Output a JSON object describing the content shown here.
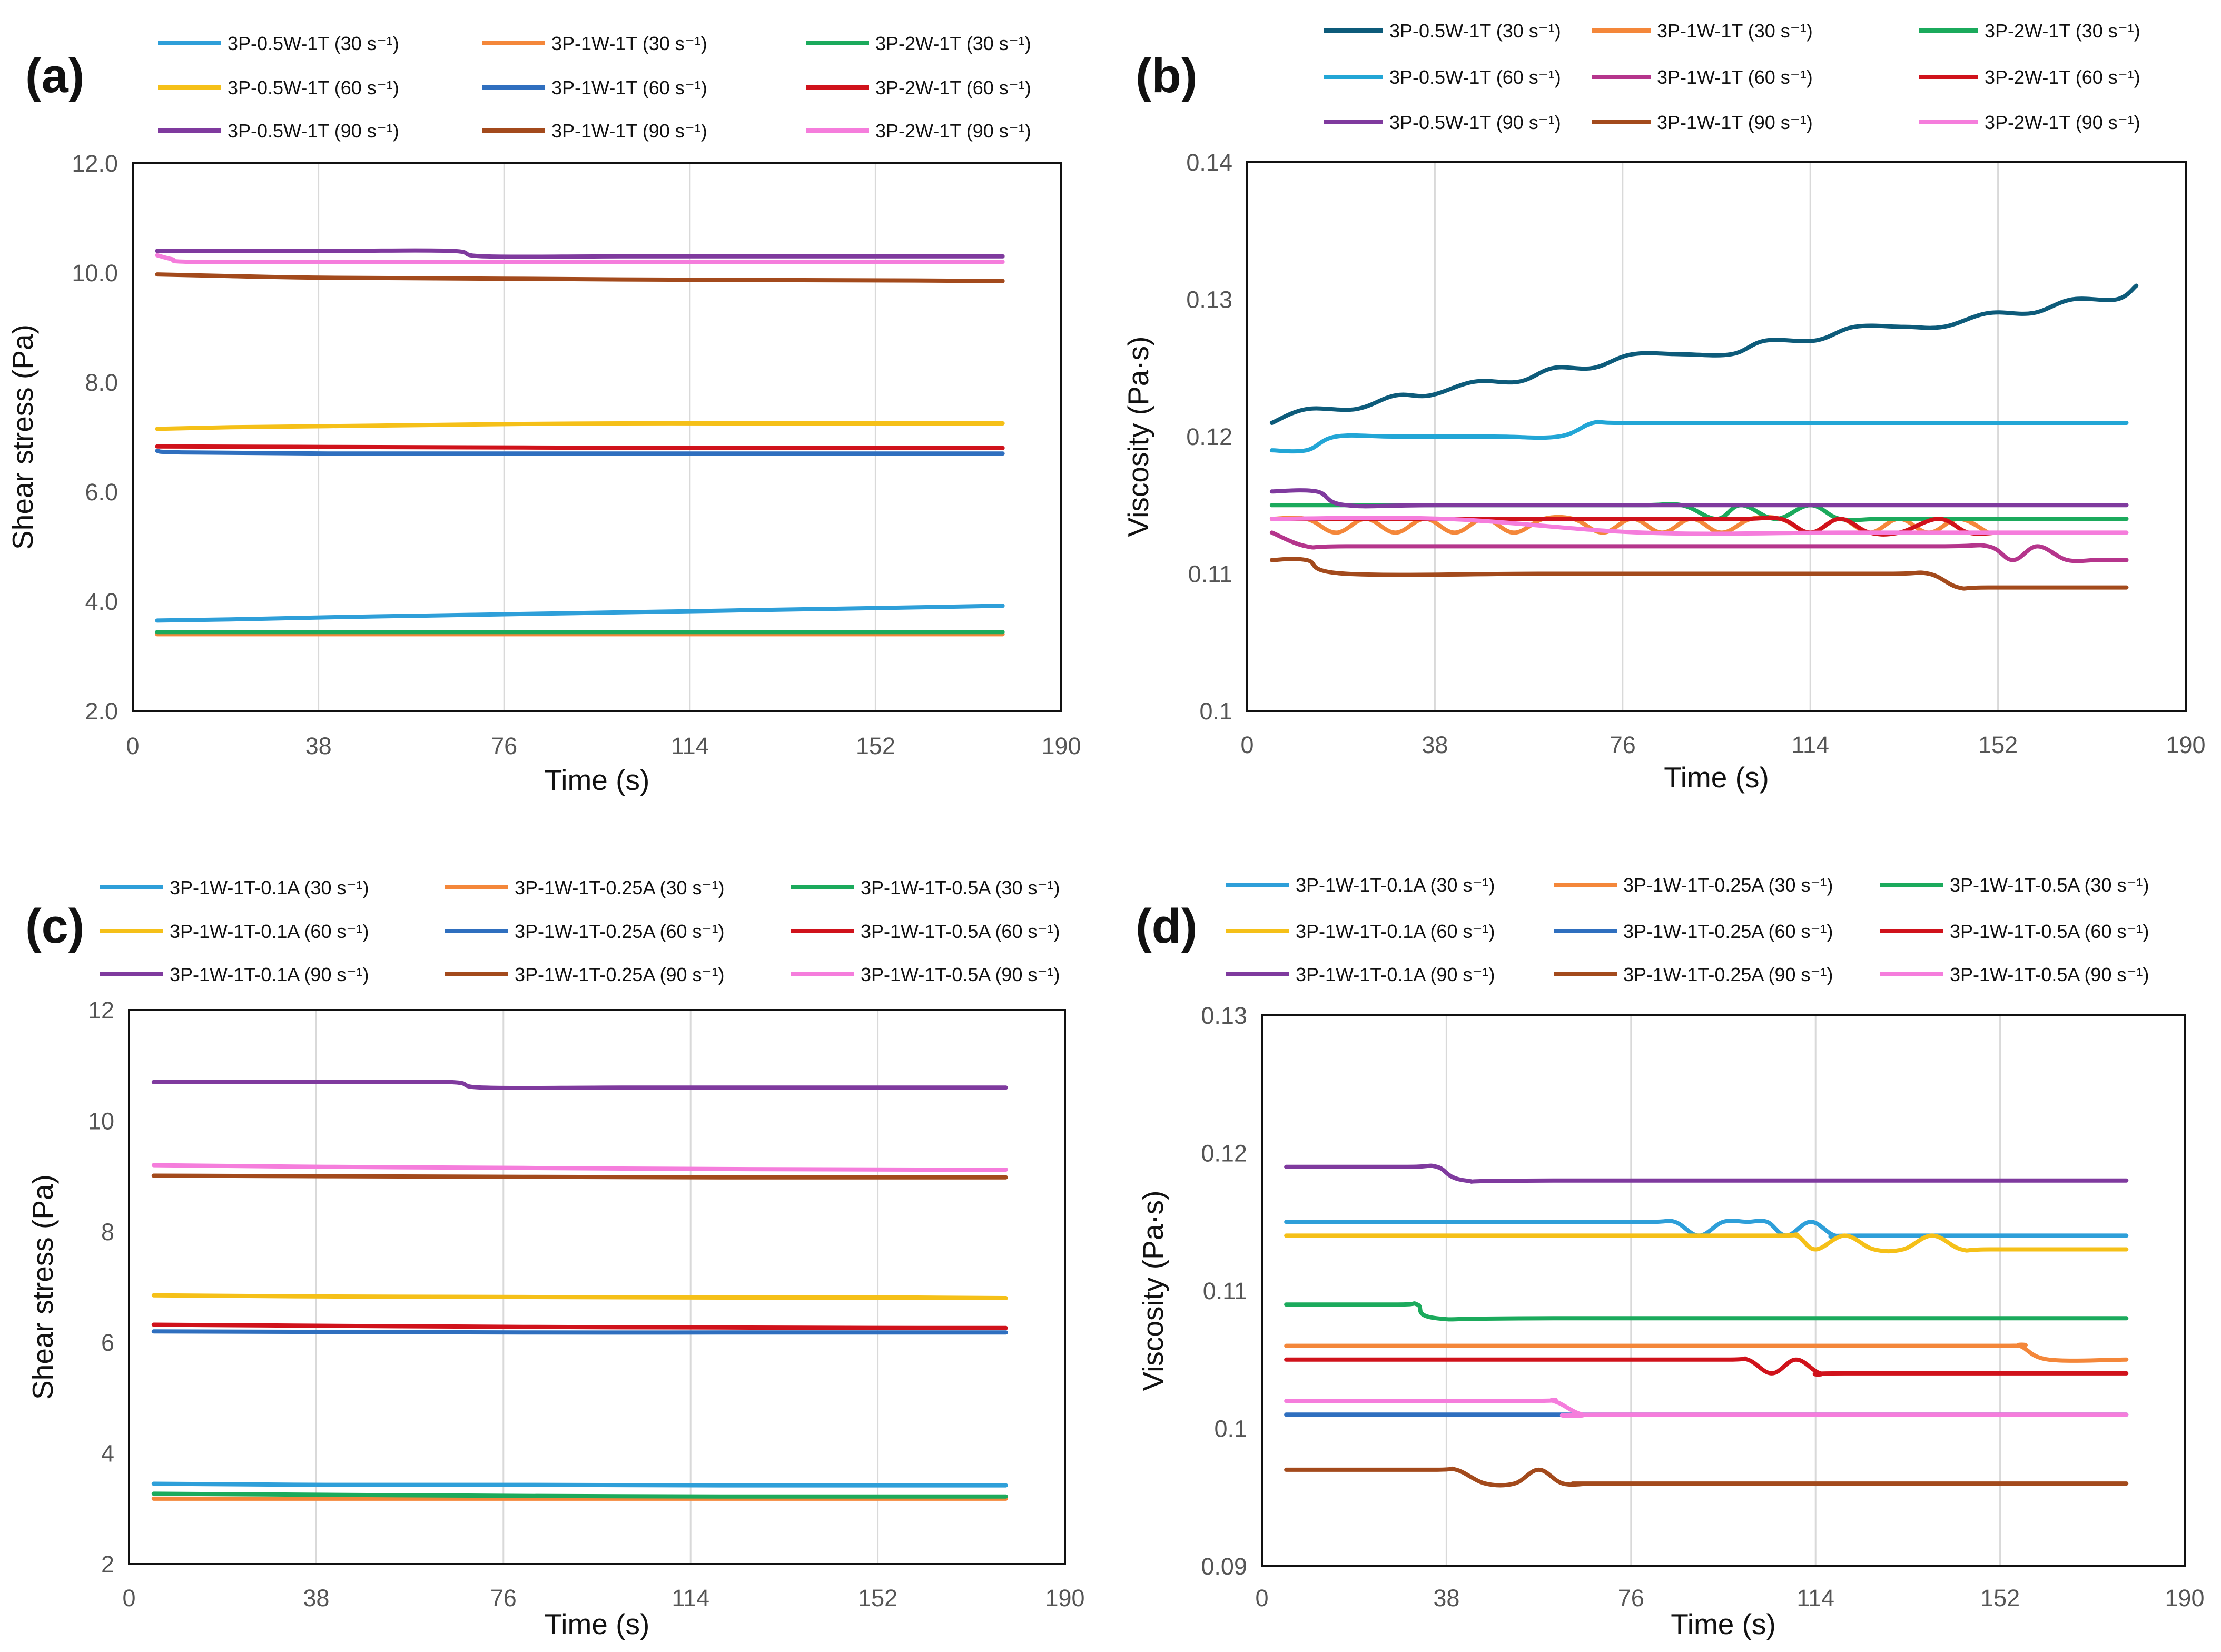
{
  "figure": {
    "description": "Shear stress and viscosity versus time"
  },
  "chart_data": [
    {
      "panel": "(a)",
      "type": "line",
      "xlabel": "Time (s)",
      "ylabel": "Shear stress (Pa)",
      "xlim": [
        0,
        190
      ],
      "ylim": [
        2,
        12
      ],
      "xticks": [
        "0",
        "38",
        "76",
        "114",
        "152",
        "190"
      ],
      "yticks": [
        "2.0",
        "4.0",
        "6.0",
        "8.0",
        "10.0",
        "12.0"
      ],
      "grid": "vertical",
      "legend_position": "top",
      "series": [
        {
          "name": "3P-0.5W-1T (30 s⁻¹)",
          "color": "#2E9FD9",
          "x": [
            5,
            20,
            40,
            60,
            80,
            100,
            120,
            140,
            160,
            178
          ],
          "y": [
            3.65,
            3.67,
            3.71,
            3.74,
            3.77,
            3.8,
            3.83,
            3.86,
            3.89,
            3.92
          ]
        },
        {
          "name": "3P-1W-1T (30 s⁻¹)",
          "color": "#F4873A",
          "x": [
            5,
            40,
            80,
            120,
            160,
            178
          ],
          "y": [
            3.4,
            3.4,
            3.4,
            3.4,
            3.4,
            3.4
          ]
        },
        {
          "name": "3P-2W-1T (30 s⁻¹)",
          "color": "#1BAA5C",
          "x": [
            5,
            40,
            80,
            120,
            160,
            178
          ],
          "y": [
            3.44,
            3.44,
            3.44,
            3.44,
            3.44,
            3.44
          ]
        },
        {
          "name": "3P-0.5W-1T (60 s⁻¹)",
          "color": "#F5C018",
          "x": [
            5,
            20,
            40,
            60,
            80,
            100,
            120,
            140,
            160,
            178
          ],
          "y": [
            7.15,
            7.18,
            7.2,
            7.22,
            7.24,
            7.25,
            7.25,
            7.25,
            7.25,
            7.25
          ]
        },
        {
          "name": "3P-1W-1T (60 s⁻¹)",
          "color": "#2F6FBF",
          "x": [
            5,
            10,
            40,
            80,
            120,
            160,
            178
          ],
          "y": [
            6.75,
            6.72,
            6.7,
            6.7,
            6.7,
            6.7,
            6.7
          ]
        },
        {
          "name": "3P-2W-1T (60 s⁻¹)",
          "color": "#D0121B",
          "x": [
            5,
            40,
            80,
            120,
            160,
            178
          ],
          "y": [
            6.83,
            6.82,
            6.81,
            6.8,
            6.8,
            6.8
          ]
        },
        {
          "name": "3P-0.5W-1T (90 s⁻¹)",
          "color": "#7F3A9E",
          "x": [
            5,
            40,
            65,
            72,
            100,
            140,
            178
          ],
          "y": [
            10.4,
            10.4,
            10.4,
            10.3,
            10.3,
            10.3,
            10.3
          ]
        },
        {
          "name": "3P-1W-1T (90 s⁻¹)",
          "color": "#A34A1C",
          "x": [
            5,
            20,
            40,
            80,
            120,
            160,
            178
          ],
          "y": [
            9.97,
            9.94,
            9.91,
            9.89,
            9.87,
            9.86,
            9.85
          ]
        },
        {
          "name": "3P-2W-1T (90 s⁻¹)",
          "color": "#F57DDC",
          "x": [
            5,
            8,
            12,
            40,
            80,
            120,
            160,
            178
          ],
          "y": [
            10.32,
            10.25,
            10.2,
            10.2,
            10.2,
            10.2,
            10.2,
            10.2
          ]
        }
      ]
    },
    {
      "panel": "(b)",
      "type": "line",
      "xlabel": "Time (s)",
      "ylabel": "Viscosity (Pa·s)",
      "xlim": [
        0,
        190
      ],
      "ylim": [
        0.1,
        0.14
      ],
      "xticks": [
        "0",
        "38",
        "76",
        "114",
        "152",
        "190"
      ],
      "yticks": [
        "0.1",
        "0.11",
        "0.12",
        "0.13",
        "0.14"
      ],
      "grid": "vertical",
      "legend_position": "top",
      "series": [
        {
          "name": "3P-0.5W-1T (30 s⁻¹)",
          "color": "#0D5B7A",
          "x": [
            5,
            12,
            22,
            30,
            37,
            46,
            55,
            62,
            70,
            78,
            88,
            98,
            105,
            115,
            123,
            133,
            141,
            150,
            159,
            167,
            176,
            180
          ],
          "y": [
            0.121,
            0.122,
            0.122,
            0.123,
            0.123,
            0.124,
            0.124,
            0.125,
            0.125,
            0.126,
            0.126,
            0.126,
            0.127,
            0.127,
            0.128,
            0.128,
            0.128,
            0.129,
            0.129,
            0.13,
            0.13,
            0.131
          ]
        },
        {
          "name": "3P-1W-1T (30 s⁻¹)",
          "color": "#F4873A",
          "x": [
            5,
            12,
            18,
            24,
            30,
            36,
            42,
            48,
            54,
            60,
            66,
            72,
            78,
            84,
            90,
            96,
            102,
            108,
            114,
            120,
            126,
            132,
            138,
            144,
            150
          ],
          "y": [
            0.114,
            0.114,
            0.113,
            0.114,
            0.113,
            0.114,
            0.113,
            0.114,
            0.113,
            0.114,
            0.114,
            0.113,
            0.114,
            0.113,
            0.114,
            0.113,
            0.114,
            0.114,
            0.113,
            0.114,
            0.113,
            0.114,
            0.113,
            0.114,
            0.113
          ]
        },
        {
          "name": "3P-2W-1T (30 s⁻¹)",
          "color": "#1BAA5C",
          "x": [
            5,
            60,
            80,
            88,
            95,
            100,
            107,
            114,
            120,
            128,
            135,
            178
          ],
          "y": [
            0.115,
            0.115,
            0.115,
            0.115,
            0.114,
            0.115,
            0.114,
            0.115,
            0.114,
            0.114,
            0.114,
            0.114
          ]
        },
        {
          "name": "3P-0.5W-1T (60 s⁻¹)",
          "color": "#22A6D6",
          "x": [
            5,
            12,
            18,
            30,
            50,
            63,
            70,
            75,
            100,
            140,
            178
          ],
          "y": [
            0.119,
            0.119,
            0.12,
            0.12,
            0.12,
            0.12,
            0.121,
            0.121,
            0.121,
            0.121,
            0.121
          ]
        },
        {
          "name": "3P-1W-1T (60 s⁻¹)",
          "color": "#B5358C",
          "x": [
            5,
            12,
            20,
            60,
            100,
            140,
            150,
            155,
            160,
            166,
            172,
            178
          ],
          "y": [
            0.113,
            0.112,
            0.112,
            0.112,
            0.112,
            0.112,
            0.112,
            0.111,
            0.112,
            0.111,
            0.111,
            0.111
          ]
        },
        {
          "name": "3P-2W-1T (60 s⁻¹)",
          "color": "#D0121B",
          "x": [
            5,
            60,
            80,
            100,
            108,
            114,
            120,
            126,
            132,
            140,
            146,
            152
          ],
          "y": [
            0.114,
            0.114,
            0.114,
            0.114,
            0.114,
            0.113,
            0.114,
            0.113,
            0.113,
            0.114,
            0.113,
            0.113
          ]
        },
        {
          "name": "3P-0.5W-1T (90 s⁻¹)",
          "color": "#7F3A9E",
          "x": [
            5,
            14,
            20,
            40,
            100,
            178
          ],
          "y": [
            0.116,
            0.116,
            0.115,
            0.115,
            0.115,
            0.115
          ]
        },
        {
          "name": "3P-1W-1T (90 s⁻¹)",
          "color": "#A34A1C",
          "x": [
            5,
            12,
            20,
            60,
            100,
            130,
            138,
            144,
            150,
            178
          ],
          "y": [
            0.111,
            0.111,
            0.11,
            0.11,
            0.11,
            0.11,
            0.11,
            0.109,
            0.109,
            0.109
          ]
        },
        {
          "name": "3P-2W-1T (90 s⁻¹)",
          "color": "#F57DDC",
          "x": [
            5,
            40,
            80,
            120,
            160,
            178
          ],
          "y": [
            0.114,
            0.114,
            0.113,
            0.113,
            0.113,
            0.113
          ]
        }
      ]
    },
    {
      "panel": "(c)",
      "type": "line",
      "xlabel": "Time (s)",
      "ylabel": "Shear stress (Pa)",
      "xlim": [
        0,
        190
      ],
      "ylim": [
        2,
        12
      ],
      "xticks": [
        "0",
        "38",
        "76",
        "114",
        "152",
        "190"
      ],
      "yticks": [
        "2",
        "4",
        "6",
        "8",
        "10",
        "12"
      ],
      "grid": "vertical",
      "legend_position": "top",
      "series": [
        {
          "name": "3P-1W-1T-0.1A (30 s⁻¹)",
          "color": "#2E9FD9",
          "x": [
            5,
            40,
            80,
            120,
            160,
            178
          ],
          "y": [
            3.45,
            3.43,
            3.43,
            3.42,
            3.42,
            3.42
          ]
        },
        {
          "name": "3P-1W-1T-0.25A (30 s⁻¹)",
          "color": "#F4873A",
          "x": [
            5,
            40,
            80,
            120,
            160,
            178
          ],
          "y": [
            3.18,
            3.18,
            3.18,
            3.18,
            3.18,
            3.18
          ]
        },
        {
          "name": "3P-1W-1T-0.5A (30 s⁻¹)",
          "color": "#1BAA5C",
          "x": [
            5,
            40,
            80,
            120,
            160,
            178
          ],
          "y": [
            3.27,
            3.25,
            3.23,
            3.22,
            3.22,
            3.22
          ]
        },
        {
          "name": "3P-1W-1T-0.1A (60 s⁻¹)",
          "color": "#F5C018",
          "x": [
            5,
            40,
            80,
            120,
            160,
            178
          ],
          "y": [
            6.85,
            6.83,
            6.82,
            6.81,
            6.81,
            6.8
          ]
        },
        {
          "name": "3P-1W-1T-0.25A (60 s⁻¹)",
          "color": "#2F6FBF",
          "x": [
            5,
            40,
            80,
            120,
            160,
            178
          ],
          "y": [
            6.2,
            6.19,
            6.18,
            6.18,
            6.18,
            6.18
          ]
        },
        {
          "name": "3P-1W-1T-0.5A (60 s⁻¹)",
          "color": "#D0121B",
          "x": [
            5,
            40,
            80,
            120,
            160,
            178
          ],
          "y": [
            6.32,
            6.3,
            6.28,
            6.27,
            6.26,
            6.26
          ]
        },
        {
          "name": "3P-1W-1T-0.1A (90 s⁻¹)",
          "color": "#7F3A9E",
          "x": [
            5,
            40,
            65,
            72,
            100,
            140,
            178
          ],
          "y": [
            10.7,
            10.7,
            10.7,
            10.6,
            10.6,
            10.6,
            10.6
          ]
        },
        {
          "name": "3P-1W-1T-0.25A (90 s⁻¹)",
          "color": "#A34A1C",
          "x": [
            5,
            40,
            80,
            120,
            160,
            178
          ],
          "y": [
            9.01,
            9.0,
            8.99,
            8.98,
            8.98,
            8.98
          ]
        },
        {
          "name": "3P-1W-1T-0.5A (90 s⁻¹)",
          "color": "#F57DDC",
          "x": [
            5,
            40,
            80,
            120,
            160,
            178
          ],
          "y": [
            9.2,
            9.17,
            9.15,
            9.13,
            9.12,
            9.12
          ]
        }
      ]
    },
    {
      "panel": "(d)",
      "type": "line",
      "xlabel": "Time (s)",
      "ylabel": "Viscosity (Pa·s)",
      "xlim": [
        0,
        190
      ],
      "ylim": [
        0.09,
        0.13
      ],
      "xticks": [
        "0",
        "38",
        "76",
        "114",
        "152",
        "190"
      ],
      "yticks": [
        "0.09",
        "0.1",
        "0.11",
        "0.12",
        "0.13"
      ],
      "grid": "vertical",
      "legend_position": "top",
      "series": [
        {
          "name": "3P-1W-1T-0.1A (30 s⁻¹)",
          "color": "#2E9FD9",
          "x": [
            5,
            60,
            80,
            85,
            90,
            95,
            100,
            104,
            108,
            113,
            118,
            123,
            178
          ],
          "y": [
            0.115,
            0.115,
            0.115,
            0.115,
            0.114,
            0.115,
            0.115,
            0.115,
            0.114,
            0.115,
            0.114,
            0.114,
            0.114
          ]
        },
        {
          "name": "3P-1W-1T-0.25A (30 s⁻¹)",
          "color": "#F4873A",
          "x": [
            5,
            100,
            152,
            156,
            162,
            178
          ],
          "y": [
            0.106,
            0.106,
            0.106,
            0.106,
            0.105,
            0.105
          ]
        },
        {
          "name": "3P-1W-1T-0.5A (30 s⁻¹)",
          "color": "#1BAA5C",
          "x": [
            5,
            28,
            32,
            36,
            60,
            178
          ],
          "y": [
            0.109,
            0.109,
            0.109,
            0.108,
            0.108,
            0.108
          ]
        },
        {
          "name": "3P-1W-1T-0.1A (60 s⁻¹)",
          "color": "#F5C018",
          "x": [
            5,
            60,
            105,
            110,
            114,
            120,
            126,
            132,
            138,
            144,
            150,
            178
          ],
          "y": [
            0.114,
            0.114,
            0.114,
            0.114,
            0.113,
            0.114,
            0.113,
            0.113,
            0.114,
            0.113,
            0.113,
            0.113
          ]
        },
        {
          "name": "3P-1W-1T-0.25A (60 s⁻¹)",
          "color": "#2F6FBF",
          "x": [
            5,
            40,
            70,
            178
          ],
          "y": [
            0.101,
            0.101,
            0.101,
            0.101
          ]
        },
        {
          "name": "3P-1W-1T-0.5A (60 s⁻¹)",
          "color": "#D0121B",
          "x": [
            5,
            60,
            95,
            100,
            105,
            110,
            115,
            120,
            178
          ],
          "y": [
            0.105,
            0.105,
            0.105,
            0.105,
            0.104,
            0.105,
            0.104,
            0.104,
            0.104
          ]
        },
        {
          "name": "3P-1W-1T-0.1A (90 s⁻¹)",
          "color": "#7F3A9E",
          "x": [
            5,
            30,
            36,
            42,
            60,
            178
          ],
          "y": [
            0.119,
            0.119,
            0.119,
            0.118,
            0.118,
            0.118
          ]
        },
        {
          "name": "3P-1W-1T-0.25A (90 s⁻¹)",
          "color": "#A34A1C",
          "x": [
            5,
            35,
            40,
            46,
            52,
            57,
            62,
            68,
            74,
            178
          ],
          "y": [
            0.097,
            0.097,
            0.097,
            0.096,
            0.096,
            0.097,
            0.096,
            0.096,
            0.096,
            0.096
          ]
        },
        {
          "name": "3P-1W-1T-0.5A (90 s⁻¹)",
          "color": "#F57DDC",
          "x": [
            5,
            55,
            60,
            66,
            72,
            178
          ],
          "y": [
            0.102,
            0.102,
            0.102,
            0.101,
            0.101,
            0.101
          ]
        }
      ]
    }
  ]
}
